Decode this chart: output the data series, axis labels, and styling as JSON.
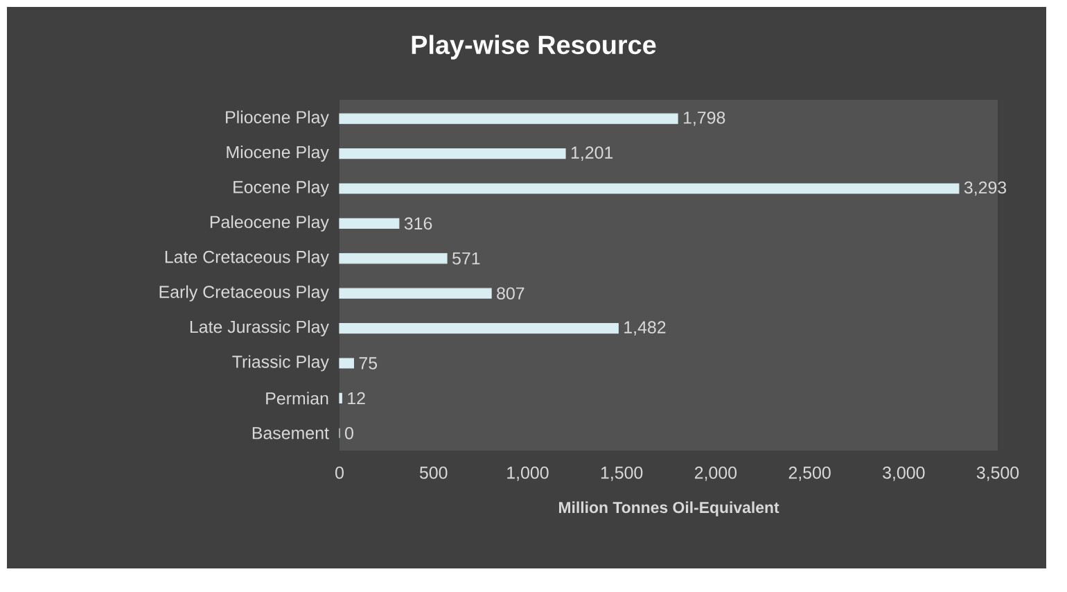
{
  "chart_data": {
    "type": "bar",
    "orientation": "horizontal",
    "title": "Play-wise Resource",
    "xlabel": "Million Tonnes Oil-Equivalent",
    "categories": [
      "Pliocene Play",
      "Miocene Play",
      "Eocene Play",
      "Paleocene Play",
      "Late Cretaceous Play",
      "Early Cretaceous Play",
      "Late Jurassic Play",
      "Triassic Play",
      "Permian",
      "Basement"
    ],
    "values": [
      1798,
      1201,
      3293,
      316,
      571,
      807,
      1482,
      75,
      12,
      0
    ],
    "value_labels": [
      "1,798",
      "1,201",
      "3,293",
      "316",
      "571",
      "807",
      "1,482",
      "75",
      "12",
      "0"
    ],
    "color": "#d8eef2",
    "xlim": [
      0,
      3500
    ],
    "xticks": [
      0,
      500,
      {
        "value": 1000,
        "label": "1,000"
      },
      {
        "value": 1500,
        "label": "1,500"
      },
      {
        "value": 2000,
        "label": "2,000"
      },
      {
        "value": 2500,
        "label": "2,500"
      },
      {
        "value": 3000,
        "label": "3,000"
      },
      {
        "value": 3500,
        "label": "3,500"
      }
    ],
    "grid": false
  }
}
